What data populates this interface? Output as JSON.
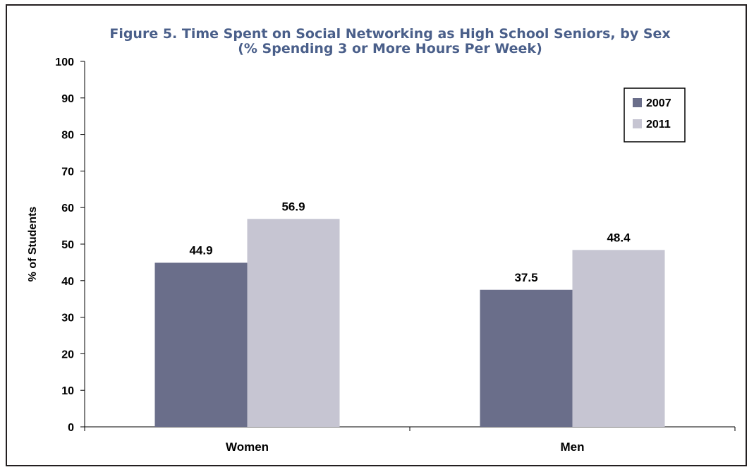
{
  "chart_data": {
    "type": "bar",
    "title": "Figure 5. Time Spent on Social Networking as High School Seniors, by Sex",
    "subtitle": "(% Spending 3 or More Hours Per Week)",
    "xlabel": "",
    "ylabel": "% of Students",
    "ylim": [
      0,
      100
    ],
    "yticks": [
      0,
      10,
      20,
      30,
      40,
      50,
      60,
      70,
      80,
      90,
      100
    ],
    "categories": [
      "Women",
      "Men"
    ],
    "series": [
      {
        "name": "2007",
        "values": [
          44.9,
          37.5
        ],
        "color": "#6a6e8a"
      },
      {
        "name": "2011",
        "values": [
          56.9,
          48.4
        ],
        "color": "#c6c5d2"
      }
    ],
    "data_labels": true,
    "grid": false,
    "legend_position": "top-right"
  }
}
